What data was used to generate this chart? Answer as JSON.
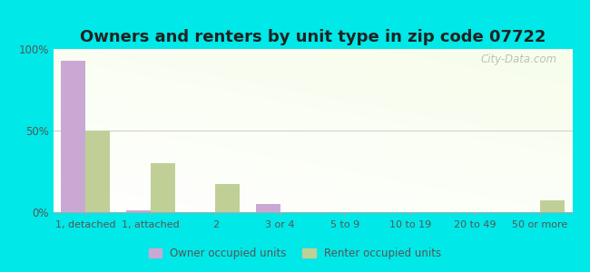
{
  "title": "Owners and renters by unit type in zip code 07722",
  "categories": [
    "1, detached",
    "1, attached",
    "2",
    "3 or 4",
    "5 to 9",
    "10 to 19",
    "20 to 49",
    "50 or more"
  ],
  "owner_values": [
    93,
    1,
    0,
    5,
    0,
    0,
    0,
    0
  ],
  "renter_values": [
    50,
    30,
    17,
    0,
    0,
    0,
    0,
    7
  ],
  "owner_color": "#c9a8d4",
  "renter_color": "#bfcf96",
  "background_outer": "#00e8e8",
  "ylim": [
    0,
    100
  ],
  "yticks": [
    0,
    50,
    100
  ],
  "ytick_labels": [
    "0%",
    "50%",
    "100%"
  ],
  "legend_owner": "Owner occupied units",
  "legend_renter": "Renter occupied units",
  "bar_width": 0.38,
  "title_fontsize": 13,
  "watermark": "City-Data.com"
}
